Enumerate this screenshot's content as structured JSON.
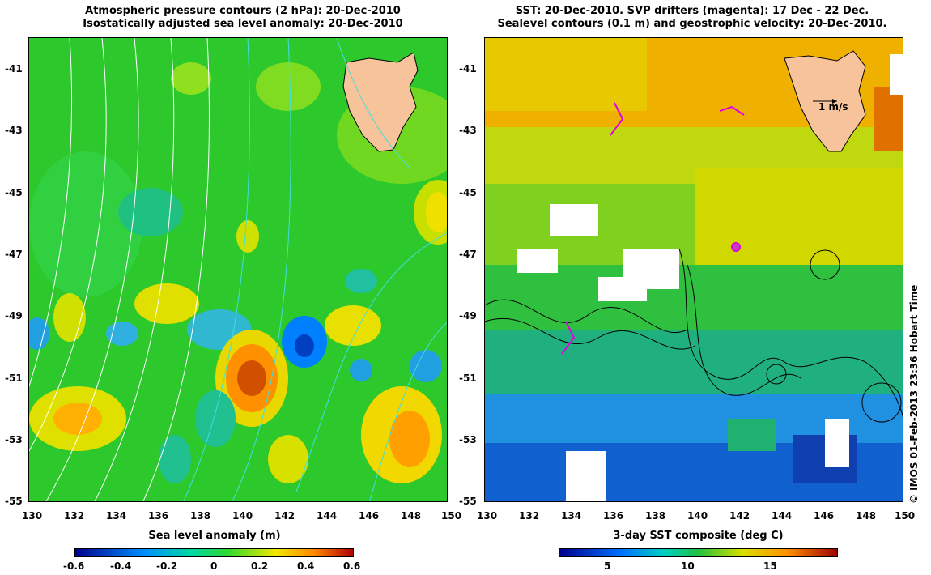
{
  "left": {
    "title1": "Atmospheric pressure contours (2 hPa): 20-Dec-2010",
    "title2": "Isostatically adjusted sea level anomaly: 20-Dec-2010",
    "colorbar_label": "Sea level anomaly (m)",
    "colorbar_ticks": [
      "-0.6",
      "-0.4",
      "-0.2",
      "0",
      "0.2",
      "0.4",
      "0.6"
    ],
    "colors": [
      "#00008b",
      "#0090ff",
      "#00d8a0",
      "#30d830",
      "#f0e800",
      "#ff8800",
      "#b00000"
    ]
  },
  "right": {
    "title1": "SST: 20-Dec-2010. SVP drifters (magenta): 17 Dec - 22 Dec.",
    "title2": "Sealevel contours (0.1 m) and geostrophic velocity: 20-Dec-2010.",
    "colorbar_label": "3-day SST composite (deg C)",
    "colorbar_ticks": [
      "5",
      "10",
      "15"
    ],
    "scale_label": "1 m/s",
    "colors": [
      "#00008b",
      "#0070ff",
      "#00d0c0",
      "#20c040",
      "#d8e000",
      "#ff9000",
      "#a00000"
    ]
  },
  "axes": {
    "x_ticks": [
      "130",
      "132",
      "134",
      "136",
      "138",
      "140",
      "142",
      "144",
      "146",
      "148",
      "150"
    ],
    "y_ticks": [
      "-41",
      "-43",
      "-45",
      "-47",
      "-49",
      "-51",
      "-53",
      "-55"
    ]
  },
  "credit": "© IMOS 01-Feb-2013 23:36 Hobart Time"
}
